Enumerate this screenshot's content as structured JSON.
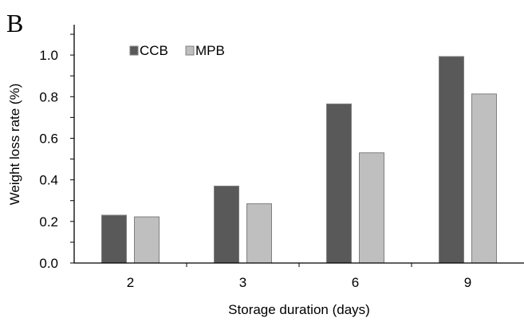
{
  "panel_label": "B",
  "chart_data": {
    "type": "bar",
    "categories": [
      "2",
      "3",
      "6",
      "9"
    ],
    "series": [
      {
        "name": "CCB",
        "values": [
          0.23,
          0.37,
          0.765,
          0.993
        ],
        "color": "#595959"
      },
      {
        "name": "MPB",
        "values": [
          0.222,
          0.285,
          0.53,
          0.813
        ],
        "color": "#bfbfbf"
      }
    ],
    "xlabel": "Storage duration (days)",
    "ylabel": "Weight loss rate (%)",
    "ylim": [
      0,
      1.1
    ],
    "yticks": [
      "0.0",
      "0.2",
      "0.4",
      "0.6",
      "0.8",
      "1.0"
    ],
    "grid": false,
    "legend_position": "top-left",
    "bar_outline_color": "#7f7f7f"
  }
}
